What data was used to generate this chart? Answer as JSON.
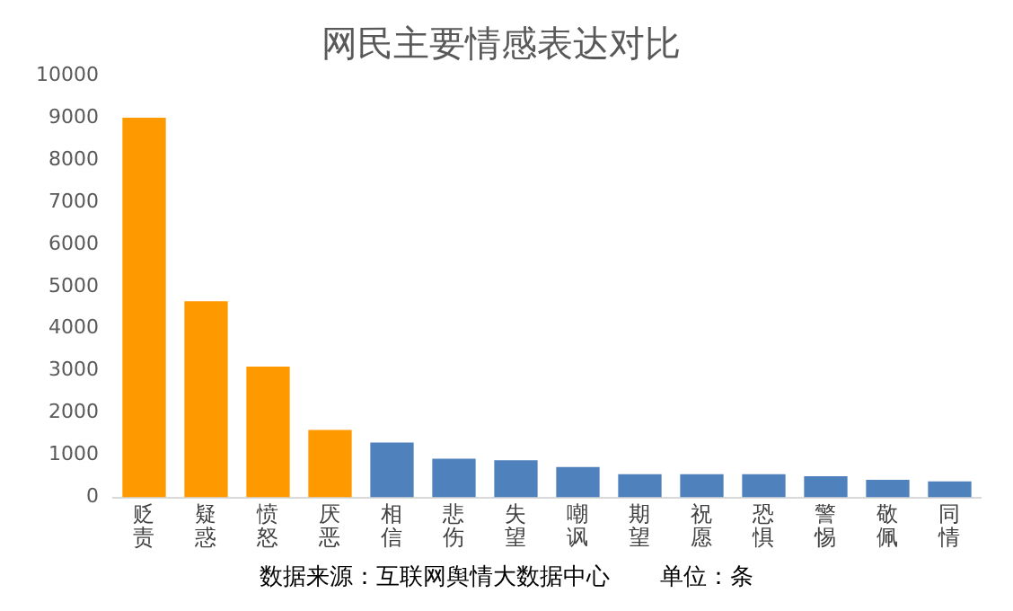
{
  "chart_data": {
    "type": "bar",
    "title": "网民主要情感表达对比",
    "categories": [
      "贬责",
      "疑惑",
      "愤怒",
      "厌恶",
      "相信",
      "悲伤",
      "失望",
      "嘲讽",
      "期望",
      "祝愿",
      "恐惧",
      "警惕",
      "敬佩",
      "同情"
    ],
    "values": [
      9000,
      4650,
      3100,
      1600,
      1300,
      920,
      880,
      720,
      550,
      550,
      550,
      500,
      420,
      380
    ],
    "colors": [
      "#ff9900",
      "#ff9900",
      "#ff9900",
      "#ff9900",
      "#4f81bd",
      "#4f81bd",
      "#4f81bd",
      "#4f81bd",
      "#4f81bd",
      "#4f81bd",
      "#4f81bd",
      "#4f81bd",
      "#4f81bd",
      "#4f81bd"
    ],
    "ylim": [
      0,
      10000
    ],
    "yticks": [
      0,
      1000,
      2000,
      3000,
      4000,
      5000,
      6000,
      7000,
      8000,
      9000,
      10000
    ],
    "grid": false,
    "legend": false,
    "annotations": [
      "数据来源：互联网舆情大数据中心",
      "单位：条"
    ]
  }
}
